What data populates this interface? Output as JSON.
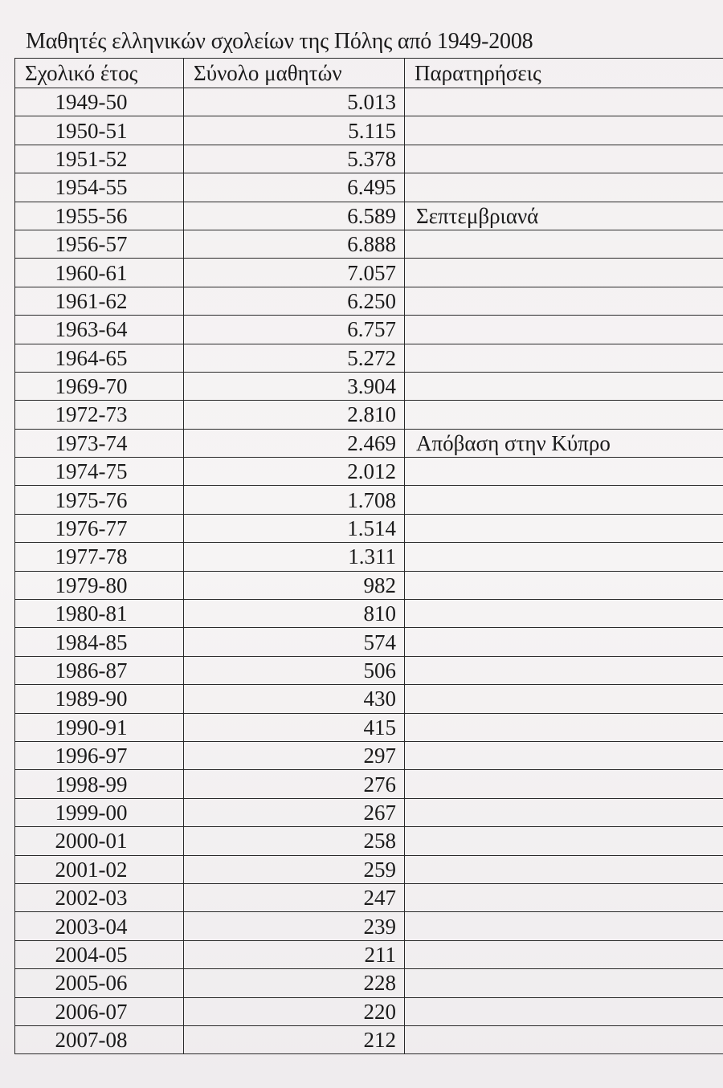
{
  "title": "Μαθητές ελληνικών σχολείων της Πόλης από 1949-2008",
  "columns": [
    "Σχολικό έτος",
    "Σύνολο μαθητών",
    "Παρατηρήσεις"
  ],
  "rows": [
    {
      "year": "1949-50",
      "total": "5.013",
      "note": ""
    },
    {
      "year": "1950-51",
      "total": "5.115",
      "note": ""
    },
    {
      "year": "1951-52",
      "total": "5.378",
      "note": ""
    },
    {
      "year": "1954-55",
      "total": "6.495",
      "note": ""
    },
    {
      "year": "1955-56",
      "total": "6.589",
      "note": "Σεπτεμβριανά"
    },
    {
      "year": "1956-57",
      "total": "6.888",
      "note": ""
    },
    {
      "year": "1960-61",
      "total": "7.057",
      "note": ""
    },
    {
      "year": "1961-62",
      "total": "6.250",
      "note": ""
    },
    {
      "year": "1963-64",
      "total": "6.757",
      "note": ""
    },
    {
      "year": "1964-65",
      "total": "5.272",
      "note": ""
    },
    {
      "year": "1969-70",
      "total": "3.904",
      "note": ""
    },
    {
      "year": "1972-73",
      "total": "2.810",
      "note": ""
    },
    {
      "year": "1973-74",
      "total": "2.469",
      "note": "Απόβαση στην Κύπρο"
    },
    {
      "year": "1974-75",
      "total": "2.012",
      "note": ""
    },
    {
      "year": "1975-76",
      "total": "1.708",
      "note": ""
    },
    {
      "year": "1976-77",
      "total": "1.514",
      "note": ""
    },
    {
      "year": "1977-78",
      "total": "1.311",
      "note": ""
    },
    {
      "year": "1979-80",
      "total": "982",
      "note": ""
    },
    {
      "year": "1980-81",
      "total": "810",
      "note": ""
    },
    {
      "year": "1984-85",
      "total": "574",
      "note": ""
    },
    {
      "year": "1986-87",
      "total": "506",
      "note": ""
    },
    {
      "year": "1989-90",
      "total": "430",
      "note": ""
    },
    {
      "year": "1990-91",
      "total": "415",
      "note": ""
    },
    {
      "year": "1996-97",
      "total": "297",
      "note": ""
    },
    {
      "year": "1998-99",
      "total": "276",
      "note": ""
    },
    {
      "year": "1999-00",
      "total": "267",
      "note": ""
    },
    {
      "year": "2000-01",
      "total": "258",
      "note": ""
    },
    {
      "year": "2001-02",
      "total": "259",
      "note": ""
    },
    {
      "year": "2002-03",
      "total": "247",
      "note": ""
    },
    {
      "year": "2003-04",
      "total": "239",
      "note": ""
    },
    {
      "year": "2004-05",
      "total": "211",
      "note": ""
    },
    {
      "year": "2005-06",
      "total": "228",
      "note": ""
    },
    {
      "year": "2006-07",
      "total": "220",
      "note": ""
    },
    {
      "year": "2007-08",
      "total": "212",
      "note": ""
    }
  ]
}
